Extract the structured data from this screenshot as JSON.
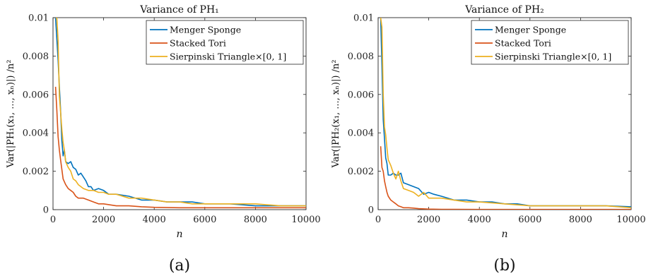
{
  "chart_data": [
    {
      "type": "line",
      "title": "Variance of PH₁",
      "xlabel": "n",
      "ylabel": "Var(|PH₁(x₁, ..., xₙ)|) /n²",
      "caption": "(a)",
      "xlim": [
        0,
        10000
      ],
      "ylim": [
        0,
        0.01
      ],
      "xticks": [
        "0",
        "2000",
        "4000",
        "6000",
        "8000",
        "10000"
      ],
      "yticks": [
        "0",
        "0.002",
        "0.004",
        "0.006",
        "0.008",
        "0.01"
      ],
      "legend_position": "top-right",
      "series": [
        {
          "name": "Menger Sponge",
          "color": "#0072BD",
          "x": [
            100,
            200,
            250,
            300,
            350,
            400,
            450,
            500,
            600,
            700,
            800,
            900,
            1000,
            1100,
            1200,
            1300,
            1400,
            1500,
            1600,
            1800,
            2000,
            2200,
            2500,
            3000,
            3500,
            4000,
            4500,
            5000,
            5500,
            6000,
            7000,
            8000,
            9000,
            10000
          ],
          "y": [
            0.01,
            0.0078,
            0.0064,
            0.0052,
            0.0036,
            0.0028,
            0.0031,
            0.0025,
            0.0024,
            0.0025,
            0.0022,
            0.0021,
            0.0018,
            0.0019,
            0.0017,
            0.0015,
            0.0012,
            0.0012,
            0.001,
            0.0011,
            0.001,
            0.0008,
            0.0008,
            0.0007,
            0.0005,
            0.0005,
            0.0004,
            0.0004,
            0.0004,
            0.0003,
            0.0003,
            0.0002,
            0.0002,
            0.0002
          ]
        },
        {
          "name": "Stacked Tori",
          "color": "#D95319",
          "x": [
            100,
            150,
            200,
            250,
            300,
            350,
            400,
            500,
            600,
            700,
            800,
            900,
            1000,
            1200,
            1400,
            1600,
            1800,
            2000,
            2500,
            3000,
            3500,
            4000,
            5000,
            6000,
            7000,
            8000,
            9000,
            10000
          ],
          "y": [
            0.0064,
            0.0052,
            0.0038,
            0.0031,
            0.0026,
            0.0021,
            0.0016,
            0.0013,
            0.0011,
            0.001,
            0.0009,
            0.0007,
            0.0006,
            0.0006,
            0.0005,
            0.0004,
            0.0003,
            0.0003,
            0.0002,
            0.0002,
            0.00015,
            0.00012,
            0.0001,
            0.0001,
            0.0001,
            0.0001,
            0.0001,
            0.0001
          ]
        },
        {
          "name": "Sierpinski Triangle×[0, 1]",
          "color": "#EDB120",
          "x": [
            100,
            150,
            200,
            250,
            300,
            350,
            400,
            450,
            500,
            600,
            700,
            800,
            900,
            1000,
            1200,
            1400,
            1600,
            1800,
            2000,
            2200,
            2500,
            3000,
            3500,
            4000,
            4500,
            5000,
            5500,
            6000,
            7000,
            8000,
            9000,
            10000
          ],
          "y": [
            0.01,
            0.01,
            0.0088,
            0.0059,
            0.0051,
            0.0042,
            0.0035,
            0.0031,
            0.0025,
            0.0022,
            0.002,
            0.0016,
            0.0015,
            0.0013,
            0.0011,
            0.001,
            0.001,
            0.0009,
            0.0009,
            0.0008,
            0.0008,
            0.0006,
            0.0006,
            0.0005,
            0.0004,
            0.0004,
            0.0003,
            0.0003,
            0.0003,
            0.0003,
            0.0002,
            0.0002
          ]
        }
      ]
    },
    {
      "type": "line",
      "title": "Variance of PH₂",
      "xlabel": "n",
      "ylabel": "Var(|PH₂(x₁, ..., xₙ)|) /n²",
      "caption": "(b)",
      "xlim": [
        0,
        10000
      ],
      "ylim": [
        0,
        0.01
      ],
      "xticks": [
        "0",
        "2000",
        "4000",
        "6000",
        "8000",
        "10000"
      ],
      "yticks": [
        "0",
        "0.002",
        "0.004",
        "0.006",
        "0.008",
        "0.01"
      ],
      "legend_position": "top-right",
      "series": [
        {
          "name": "Menger Sponge",
          "color": "#0072BD",
          "x": [
            100,
            150,
            200,
            250,
            300,
            350,
            400,
            500,
            600,
            700,
            800,
            900,
            1000,
            1200,
            1400,
            1600,
            1800,
            2000,
            2200,
            2500,
            3000,
            3500,
            4000,
            4500,
            5000,
            5500,
            6000,
            7000,
            8000,
            9000,
            10000
          ],
          "y": [
            0.01,
            0.0075,
            0.0047,
            0.0037,
            0.0027,
            0.0024,
            0.0018,
            0.0018,
            0.0019,
            0.0018,
            0.0018,
            0.0019,
            0.0014,
            0.0013,
            0.0012,
            0.0011,
            0.0008,
            0.0009,
            0.0008,
            0.0007,
            0.0005,
            0.0005,
            0.0004,
            0.0004,
            0.0003,
            0.0003,
            0.0002,
            0.0002,
            0.0002,
            0.0002,
            0.00015
          ]
        },
        {
          "name": "Stacked Tori",
          "color": "#D95319",
          "x": [
            100,
            150,
            200,
            250,
            300,
            350,
            400,
            500,
            600,
            700,
            800,
            900,
            1000,
            1200,
            1400,
            1600,
            2000,
            2500,
            3000,
            4000,
            5000,
            6000,
            8000,
            10000
          ],
          "y": [
            0.0033,
            0.0022,
            0.002,
            0.0015,
            0.0012,
            0.0009,
            0.0007,
            0.0005,
            0.0004,
            0.0003,
            0.0002,
            0.00015,
            0.0001,
            0.0001,
            8e-05,
            5e-05,
            3e-05,
            2e-05,
            2e-05,
            1e-05,
            1e-05,
            1e-05,
            1e-05,
            1e-05
          ]
        },
        {
          "name": "Sierpinski Triangle×[0, 1]",
          "color": "#EDB120",
          "x": [
            100,
            150,
            200,
            250,
            300,
            350,
            400,
            500,
            600,
            700,
            800,
            900,
            1000,
            1200,
            1400,
            1600,
            1800,
            2000,
            2200,
            2500,
            3000,
            3500,
            4000,
            5000,
            6000,
            7000,
            8000,
            9000,
            10000
          ],
          "y": [
            0.01,
            0.0095,
            0.006,
            0.0043,
            0.0039,
            0.0032,
            0.0026,
            0.0023,
            0.0019,
            0.0016,
            0.002,
            0.0015,
            0.0011,
            0.001,
            0.0009,
            0.0007,
            0.0009,
            0.0006,
            0.0006,
            0.0006,
            0.0005,
            0.0004,
            0.0004,
            0.0003,
            0.0002,
            0.0002,
            0.0002,
            0.0002,
            0.0001
          ]
        }
      ]
    }
  ]
}
